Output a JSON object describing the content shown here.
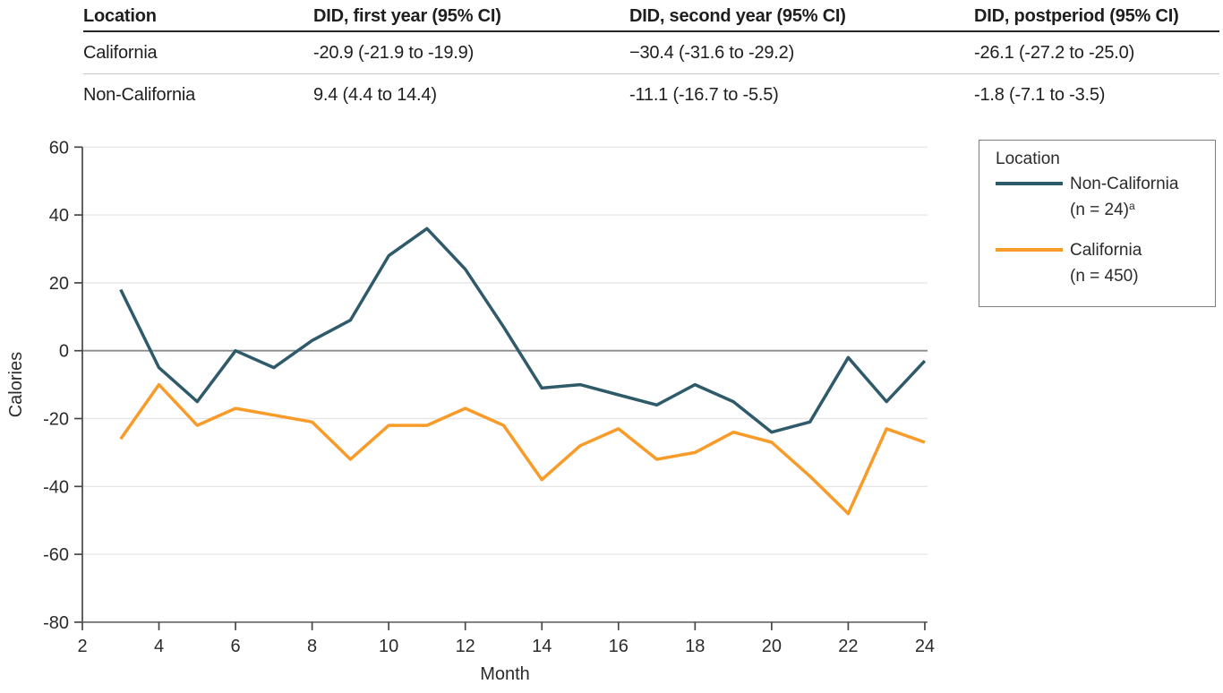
{
  "table": {
    "columns": [
      "Location",
      "DID, first year (95% CI)",
      "DID, second year (95% CI)",
      "DID, postperiod (95% CI)"
    ],
    "rows": [
      {
        "location": "California",
        "first_year": "-20.9 (-21.9 to -19.9)",
        "second_year": "−30.4 (-31.6 to -29.2)",
        "postperiod": "-26.1 (-27.2 to -25.0)"
      },
      {
        "location": "Non-California",
        "first_year": "9.4 (4.4 to 14.4)",
        "second_year": "-11.1 (-16.7 to -5.5)",
        "postperiod": "-1.8 (-7.1 to -3.5)"
      }
    ]
  },
  "legend": {
    "title": "Location",
    "items": [
      {
        "label": "Non-California",
        "sub": "(n = 24)",
        "sup": "a",
        "color": "#2F5A6A"
      },
      {
        "label": "California",
        "sub": "(n = 450)",
        "sup": "",
        "color": "#F89B28"
      }
    ]
  },
  "chart_data": {
    "type": "line",
    "title": "",
    "xlabel": "Month",
    "ylabel": "Calories",
    "xlim": [
      2,
      24
    ],
    "ylim": [
      -80,
      60
    ],
    "x_ticks": [
      2,
      4,
      6,
      8,
      10,
      12,
      14,
      16,
      18,
      20,
      22,
      24
    ],
    "y_ticks": [
      60,
      40,
      20,
      0,
      -20,
      -40,
      -60,
      -80
    ],
    "grid": true,
    "zero_line": true,
    "legend_position": "right",
    "x": [
      3,
      4,
      5,
      6,
      7,
      8,
      9,
      10,
      11,
      12,
      13,
      14,
      15,
      16,
      17,
      18,
      19,
      20,
      21,
      22,
      23,
      24
    ],
    "series": [
      {
        "name": "Non-California (n = 24)",
        "color": "#2F5A6A",
        "values": [
          18,
          -5,
          -15,
          0,
          -5,
          3,
          9,
          28,
          36,
          24,
          7,
          -11,
          -10,
          -13,
          -16,
          -10,
          -15,
          -24,
          -21,
          -2,
          -15,
          -3
        ]
      },
      {
        "name": "California (n = 450)",
        "color": "#F89B28",
        "values": [
          -26,
          -10,
          -22,
          -17,
          -19,
          -21,
          -32,
          -22,
          -22,
          -17,
          -22,
          -38,
          -28,
          -23,
          -32,
          -30,
          -24,
          -27,
          -37,
          -48,
          -23,
          -27
        ]
      }
    ]
  },
  "colors": {
    "non_california_line": "#2F5A6A",
    "california_line": "#F89B28",
    "gridline": "#e7e7e7",
    "zero_line": "#8c8c8c",
    "axis": "#474747",
    "text": "#2b2b2b"
  }
}
